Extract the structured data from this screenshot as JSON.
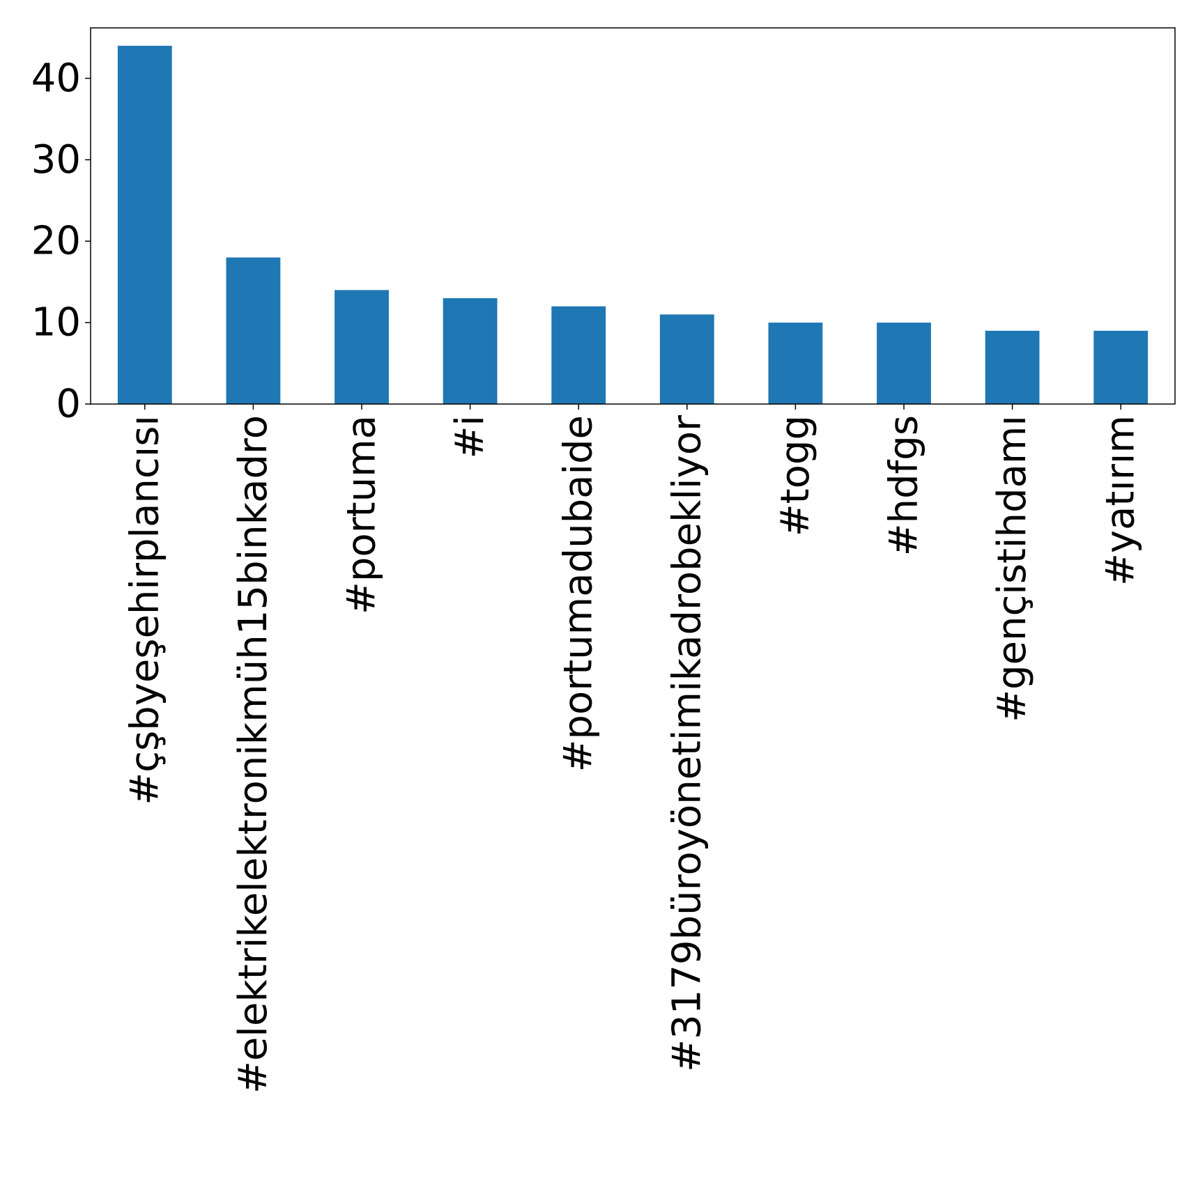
{
  "chart_data": {
    "type": "bar",
    "categories": [
      "#çşbyeşehirplancısı",
      "#elektrikelektronikmüh15binkadro",
      "#portuma",
      "#i",
      "#portumadubaide",
      "#3179büroyönetimikadrobekliyor",
      "#togg",
      "#hdfgs",
      "#gençistihdamı",
      "#yatırım"
    ],
    "values": [
      44,
      18,
      14,
      13,
      12,
      11,
      10,
      10,
      9,
      9
    ],
    "yticks": [
      "0",
      "10",
      "20",
      "30",
      "40"
    ],
    "ylim": [
      0,
      46.2
    ],
    "bar_color": "#1f77b4",
    "grid": false,
    "legend": "none"
  }
}
